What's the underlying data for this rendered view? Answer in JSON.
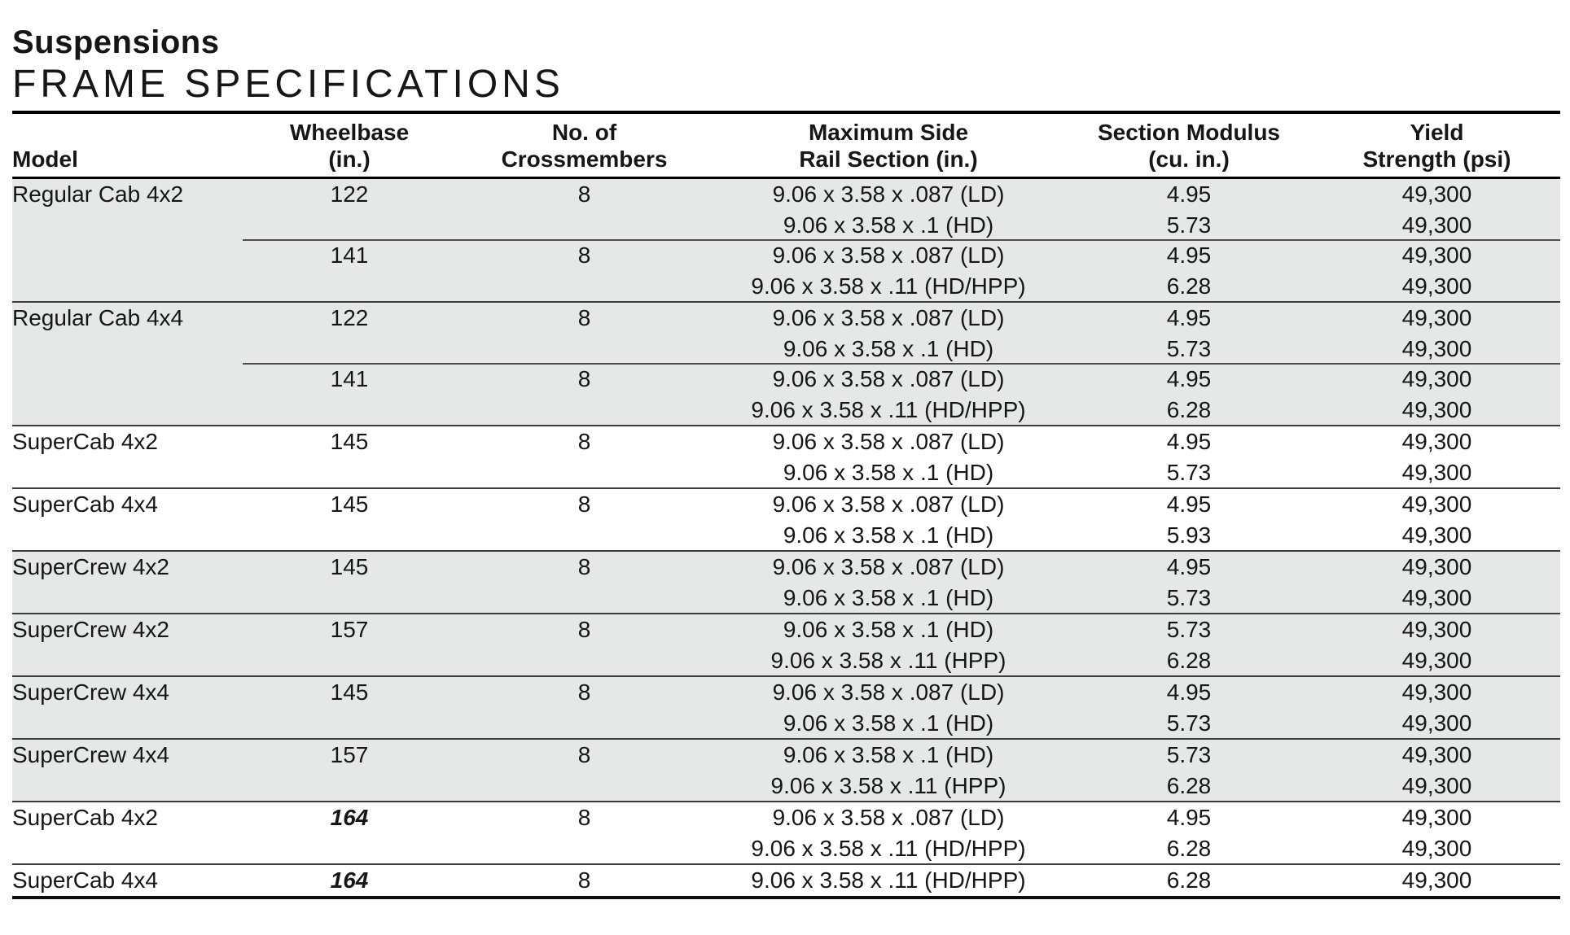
{
  "page": {
    "title": "Suspensions",
    "subtitle": "FRAME SPECIFICATIONS"
  },
  "colors": {
    "shaded_row": "#e6e7e7",
    "heavy_rule": "#000000",
    "row_divider": "#3c3c3c",
    "text": "#161616"
  },
  "table": {
    "columns": [
      {
        "id": "model",
        "lines": [
          "Model"
        ]
      },
      {
        "id": "wheelbase",
        "lines": [
          "Wheelbase",
          "(in.)"
        ]
      },
      {
        "id": "crossmembers",
        "lines": [
          "No. of",
          "Crossmembers"
        ]
      },
      {
        "id": "rail",
        "lines": [
          "Maximum Side",
          "Rail Section (in.)"
        ]
      },
      {
        "id": "modulus",
        "lines": [
          "Section Modulus",
          "(cu. in.)"
        ]
      },
      {
        "id": "yield",
        "lines": [
          "Yield",
          "Strength (psi)"
        ]
      }
    ],
    "groups": [
      {
        "model": "Regular Cab 4x2",
        "shaded": true,
        "wheelbases": [
          {
            "wheelbase": "122",
            "emphasis": false,
            "crossmembers": "8",
            "rails": [
              {
                "section": "9.06 x 3.58 x .087 (LD)",
                "modulus": "4.95",
                "yield_strength": "49,300"
              },
              {
                "section": "9.06 x 3.58 x .1 (HD)",
                "modulus": "5.73",
                "yield_strength": "49,300"
              }
            ]
          },
          {
            "wheelbase": "141",
            "emphasis": false,
            "crossmembers": "8",
            "rails": [
              {
                "section": "9.06 x 3.58 x .087 (LD)",
                "modulus": "4.95",
                "yield_strength": "49,300"
              },
              {
                "section": "9.06 x 3.58 x .11 (HD/HPP)",
                "modulus": "6.28",
                "yield_strength": "49,300"
              }
            ]
          }
        ]
      },
      {
        "model": "Regular Cab 4x4",
        "shaded": true,
        "wheelbases": [
          {
            "wheelbase": "122",
            "emphasis": false,
            "crossmembers": "8",
            "rails": [
              {
                "section": "9.06 x 3.58 x .087 (LD)",
                "modulus": "4.95",
                "yield_strength": "49,300"
              },
              {
                "section": "9.06 x 3.58 x .1 (HD)",
                "modulus": "5.73",
                "yield_strength": "49,300"
              }
            ]
          },
          {
            "wheelbase": "141",
            "emphasis": false,
            "crossmembers": "8",
            "rails": [
              {
                "section": "9.06 x 3.58 x .087 (LD)",
                "modulus": "4.95",
                "yield_strength": "49,300"
              },
              {
                "section": "9.06 x 3.58 x .11 (HD/HPP)",
                "modulus": "6.28",
                "yield_strength": "49,300"
              }
            ]
          }
        ]
      },
      {
        "model": "SuperCab 4x2",
        "shaded": false,
        "wheelbases": [
          {
            "wheelbase": "145",
            "emphasis": false,
            "crossmembers": "8",
            "rails": [
              {
                "section": "9.06 x 3.58 x .087 (LD)",
                "modulus": "4.95",
                "yield_strength": "49,300"
              },
              {
                "section": "9.06 x 3.58 x .1 (HD)",
                "modulus": "5.73",
                "yield_strength": "49,300"
              }
            ]
          }
        ]
      },
      {
        "model": "SuperCab 4x4",
        "shaded": false,
        "wheelbases": [
          {
            "wheelbase": "145",
            "emphasis": false,
            "crossmembers": "8",
            "rails": [
              {
                "section": "9.06 x 3.58 x .087 (LD)",
                "modulus": "4.95",
                "yield_strength": "49,300"
              },
              {
                "section": "9.06 x 3.58 x .1 (HD)",
                "modulus": "5.93",
                "yield_strength": "49,300"
              }
            ]
          }
        ]
      },
      {
        "model": "SuperCrew 4x2",
        "shaded": true,
        "wheelbases": [
          {
            "wheelbase": "145",
            "emphasis": false,
            "crossmembers": "8",
            "rails": [
              {
                "section": "9.06 x 3.58 x .087 (LD)",
                "modulus": "4.95",
                "yield_strength": "49,300"
              },
              {
                "section": "9.06 x 3.58 x .1 (HD)",
                "modulus": "5.73",
                "yield_strength": "49,300"
              }
            ]
          }
        ]
      },
      {
        "model": "SuperCrew 4x2",
        "shaded": true,
        "wheelbases": [
          {
            "wheelbase": "157",
            "emphasis": false,
            "crossmembers": "8",
            "rails": [
              {
                "section": "9.06 x 3.58 x .1 (HD)",
                "modulus": "5.73",
                "yield_strength": "49,300"
              },
              {
                "section": "9.06 x 3.58 x .11 (HPP)",
                "modulus": "6.28",
                "yield_strength": "49,300"
              }
            ]
          }
        ]
      },
      {
        "model": "SuperCrew 4x4",
        "shaded": true,
        "wheelbases": [
          {
            "wheelbase": "145",
            "emphasis": false,
            "crossmembers": "8",
            "rails": [
              {
                "section": "9.06 x 3.58 x .087 (LD)",
                "modulus": "4.95",
                "yield_strength": "49,300"
              },
              {
                "section": "9.06 x 3.58 x .1 (HD)",
                "modulus": "5.73",
                "yield_strength": "49,300"
              }
            ]
          }
        ]
      },
      {
        "model": "SuperCrew 4x4",
        "shaded": true,
        "wheelbases": [
          {
            "wheelbase": "157",
            "emphasis": false,
            "crossmembers": "8",
            "rails": [
              {
                "section": "9.06 x 3.58 x .1 (HD)",
                "modulus": "5.73",
                "yield_strength": "49,300"
              },
              {
                "section": "9.06 x 3.58 x .11 (HPP)",
                "modulus": "6.28",
                "yield_strength": "49,300"
              }
            ]
          }
        ]
      },
      {
        "model": "SuperCab 4x2",
        "shaded": false,
        "wheelbases": [
          {
            "wheelbase": "164",
            "emphasis": true,
            "crossmembers": "8",
            "rails": [
              {
                "section": "9.06 x 3.58 x .087 (LD)",
                "modulus": "4.95",
                "yield_strength": "49,300"
              },
              {
                "section": "9.06 x 3.58 x .11 (HD/HPP)",
                "modulus": "6.28",
                "yield_strength": "49,300"
              }
            ]
          }
        ]
      },
      {
        "model": "SuperCab 4x4",
        "shaded": false,
        "wheelbases": [
          {
            "wheelbase": "164",
            "emphasis": true,
            "crossmembers": "8",
            "rails": [
              {
                "section": "9.06 x 3.58 x .11 (HD/HPP)",
                "modulus": "6.28",
                "yield_strength": "49,300"
              }
            ]
          }
        ]
      }
    ]
  }
}
